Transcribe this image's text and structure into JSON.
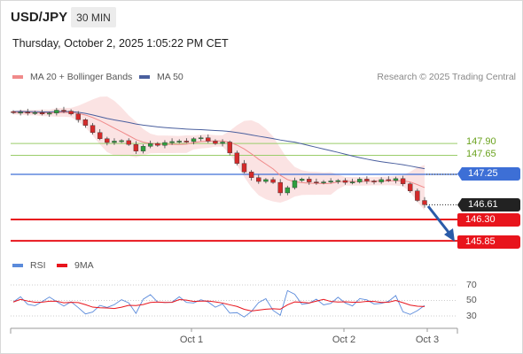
{
  "header": {
    "symbol": "USD/JPY",
    "timeframe": "30 MIN",
    "datetime": "Thursday, October 2, 2025 1:05:22 PM CET"
  },
  "legend": {
    "ma20_label": "MA 20 + Bollinger Bands",
    "ma50_label": "MA 50",
    "credit": "Research © 2025 Trading Central",
    "rsi_label": "RSI",
    "ma9_label": "9MA"
  },
  "colors": {
    "ma20": "#f08a8a",
    "bollinger_fill": "#fadede",
    "ma50": "#4a5f9e",
    "green_level": "#9acd6a",
    "blue_level": "#3d6fd6",
    "red_level": "#e8141c",
    "current_price": "#222222",
    "arrow": "#2a5ba8",
    "rsi": "#5b8bdb",
    "rsi_ma": "#e8141c",
    "candle_up": "#2e9e3e",
    "candle_down": "#d42a2a"
  },
  "levels": {
    "resistance_2": "147.90",
    "resistance_1": "147.65",
    "pivot": "147.25",
    "current": "146.61",
    "support_1": "146.30",
    "support_2": "145.85"
  },
  "rsi_levels": [
    "70",
    "50",
    "30"
  ],
  "x_axis": {
    "labels": [
      "Oct 1",
      "Oct 2",
      "Oct 3"
    ]
  },
  "chart_data": {
    "type": "candlestick",
    "instrument": "USD/JPY",
    "timeframe": "30 MIN",
    "price_levels": [
      147.9,
      147.65,
      147.25,
      146.61,
      146.3,
      145.85
    ],
    "close_path": [
      148.55,
      148.56,
      148.54,
      148.55,
      148.52,
      148.54,
      148.6,
      148.58,
      148.52,
      148.4,
      148.28,
      148.13,
      148.0,
      147.92,
      147.95,
      147.96,
      147.88,
      147.74,
      147.84,
      147.9,
      147.86,
      147.92,
      147.94,
      147.95,
      147.94,
      148.0,
      148.02,
      147.95,
      147.9,
      147.93,
      147.7,
      147.48,
      147.3,
      147.18,
      147.1,
      147.14,
      147.08,
      146.86,
      146.97,
      147.12,
      147.15,
      147.09,
      147.08,
      147.09,
      147.11,
      147.12,
      147.08,
      147.09,
      147.15,
      147.11,
      147.09,
      147.14,
      147.12,
      147.16,
      147.05,
      146.9,
      146.7,
      146.61
    ],
    "rsi_range": [
      30,
      70
    ]
  }
}
